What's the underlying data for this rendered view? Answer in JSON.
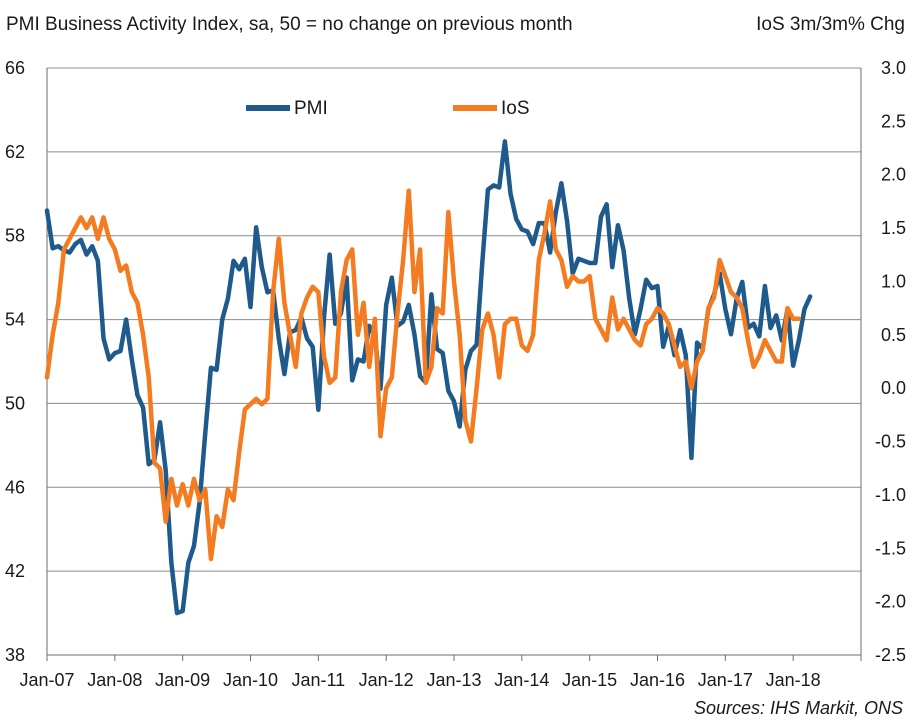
{
  "chart_data": {
    "type": "line",
    "title": "PMI Business Activity Index, sa, 50 = no change on previous month",
    "right_axis_title": "IoS 3m/3m% Chg",
    "source": "Sources: IHS Markit, ONS",
    "legend_position": "top-left",
    "grid": "horizontal",
    "x_start": "2007-01",
    "x_ticks": [
      "Jan-07",
      "Jan-08",
      "Jan-09",
      "Jan-10",
      "Jan-11",
      "Jan-12",
      "Jan-13",
      "Jan-14",
      "Jan-15",
      "Jan-16",
      "Jan-17",
      "Jan-18"
    ],
    "y_left": {
      "ticks": [
        "66",
        "62",
        "58",
        "54",
        "50",
        "46",
        "42",
        "38"
      ],
      "range": [
        38,
        66
      ]
    },
    "y_right": {
      "ticks": [
        "3.0",
        "2.5",
        "2.0",
        "1.5",
        "1.0",
        "0.5",
        "0.0",
        "-0.5",
        "-1.0",
        "-1.5",
        "-2.0",
        "-2.5"
      ],
      "range": [
        -2.5,
        3.0
      ]
    },
    "series": [
      {
        "name": "PMI",
        "axis": "left",
        "color": "#1f5a8c",
        "values": [
          59.2,
          57.4,
          57.5,
          57.3,
          57.2,
          57.6,
          57.8,
          57.1,
          57.5,
          56.8,
          53.1,
          52.1,
          52.4,
          52.5,
          54.0,
          52.1,
          50.4,
          49.8,
          47.1,
          47.3,
          49.1,
          46.8,
          42.4,
          40.0,
          40.1,
          42.4,
          43.2,
          45.3,
          48.6,
          51.7,
          51.6,
          54.0,
          55.0,
          56.8,
          56.4,
          56.9,
          54.6,
          58.4,
          56.5,
          55.3,
          55.4,
          53.1,
          51.4,
          53.4,
          53.5,
          54.1,
          53.1,
          52.7,
          49.7,
          54.1,
          57.1,
          53.8,
          54.3,
          56.0,
          51.1,
          52.1,
          52.0,
          53.7,
          53.2,
          50.7,
          54.7,
          56.0,
          53.7,
          53.9,
          54.7,
          53.3,
          51.3,
          51.0,
          55.2,
          52.6,
          52.4,
          50.6,
          50.1,
          48.9,
          51.6,
          52.5,
          52.8,
          56.7,
          60.2,
          60.4,
          60.3,
          62.5,
          60.0,
          58.8,
          58.3,
          58.2,
          57.6,
          58.6,
          58.6,
          57.2,
          59.1,
          60.5,
          58.7,
          56.2,
          56.9,
          56.8,
          56.7,
          56.7,
          58.9,
          59.5,
          56.5,
          58.5,
          57.3,
          55.0,
          53.3,
          54.5,
          55.9,
          55.5,
          55.6,
          52.7,
          53.7,
          52.3,
          53.5,
          52.3,
          47.4,
          52.9,
          52.6,
          54.5,
          55.2,
          56.2,
          54.5,
          53.3,
          55.0,
          55.8,
          53.6,
          53.8,
          53.2,
          55.6,
          53.6,
          54.2,
          53.0,
          54.5,
          51.8,
          53.0,
          54.5,
          55.1
        ]
      },
      {
        "name": "IoS",
        "axis": "right",
        "color": "#f47b20",
        "values": [
          0.1,
          0.5,
          0.8,
          1.3,
          1.4,
          1.5,
          1.6,
          1.5,
          1.6,
          1.4,
          1.6,
          1.4,
          1.3,
          1.1,
          1.15,
          0.9,
          0.8,
          0.5,
          0.1,
          -0.7,
          -0.75,
          -1.25,
          -0.85,
          -1.1,
          -0.9,
          -1.1,
          -0.85,
          -1.05,
          -0.95,
          -1.6,
          -1.2,
          -1.3,
          -0.95,
          -1.05,
          -0.6,
          -0.2,
          -0.15,
          -0.1,
          -0.15,
          -0.1,
          0.9,
          1.4,
          0.8,
          0.5,
          0.2,
          0.7,
          0.85,
          0.95,
          0.9,
          0.3,
          0.05,
          0.1,
          0.9,
          1.2,
          1.3,
          0.5,
          0.8,
          0.2,
          0.65,
          -0.45,
          0.0,
          0.1,
          0.7,
          1.2,
          1.85,
          0.9,
          1.3,
          0.05,
          0.2,
          0.75,
          0.7,
          1.65,
          1.0,
          0.5,
          -0.3,
          -0.5,
          0.0,
          0.55,
          0.7,
          0.5,
          0.1,
          0.6,
          0.65,
          0.65,
          0.4,
          0.35,
          0.5,
          1.2,
          1.45,
          1.75,
          1.3,
          1.2,
          0.95,
          1.05,
          1.0,
          1.0,
          1.05,
          0.65,
          0.55,
          0.45,
          0.85,
          0.55,
          0.65,
          0.55,
          0.45,
          0.4,
          0.6,
          0.65,
          0.75,
          0.7,
          0.6,
          0.4,
          0.2,
          0.25,
          0.0,
          0.25,
          0.35,
          0.75,
          0.85,
          1.2,
          1.05,
          0.9,
          0.85,
          0.75,
          0.45,
          0.2,
          0.3,
          0.45,
          0.35,
          0.25,
          0.25,
          0.75,
          0.65,
          0.65
        ]
      }
    ]
  }
}
